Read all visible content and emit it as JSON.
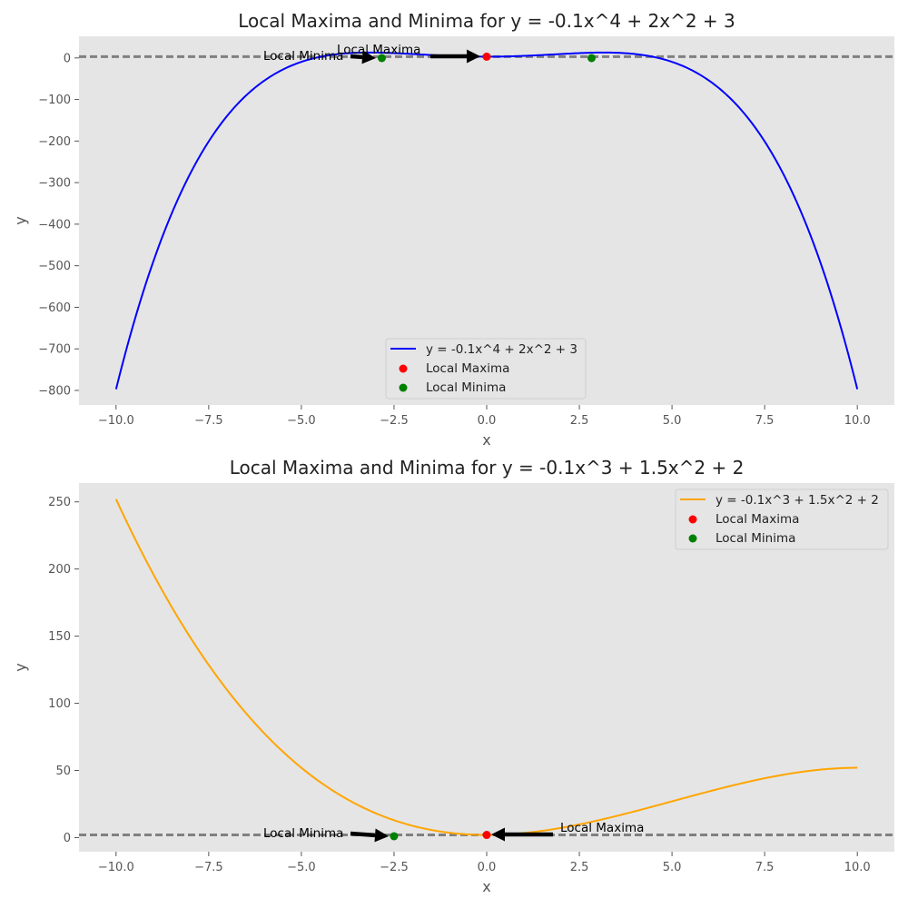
{
  "chart_data": [
    {
      "type": "line",
      "title": "Local Maxima and Minima for y = -0.1x^4 + 2x^2 + 3",
      "xlabel": "x",
      "ylabel": "y",
      "xlim": [
        -11,
        11
      ],
      "ylim": [
        -835,
        52
      ],
      "xticks": [
        -10,
        -7.5,
        -5,
        -2.5,
        0,
        2.5,
        5,
        7.5,
        10
      ],
      "xtick_labels": [
        "−10.0",
        "−7.5",
        "−5.0",
        "−2.5",
        "0.0",
        "2.5",
        "5.0",
        "7.5",
        "10.0"
      ],
      "yticks": [
        0,
        -100,
        -200,
        -300,
        -400,
        -500,
        -600,
        -700,
        -800
      ],
      "ytick_labels": [
        "0",
        "−100",
        "−200",
        "−300",
        "−400",
        "−500",
        "−600",
        "−700",
        "−800"
      ],
      "grid": false,
      "background": "#e5e5e5",
      "legend_placement": "lower-center",
      "hline": {
        "y": 3,
        "color": "#808080",
        "style": "dashed"
      },
      "series": [
        {
          "name": "y = -0.1x^4 + 2x^2 + 3",
          "color": "#0000ff",
          "function": {
            "x0": -10,
            "x1": 10,
            "coefficients": [
              3,
              0,
              2,
              0,
              -0.1
            ]
          }
        }
      ],
      "points": [
        {
          "name": "Local Maxima",
          "color": "#ff0000",
          "x": [
            0
          ],
          "y": [
            3
          ]
        },
        {
          "name": "Local Minima",
          "color": "#008000",
          "x": [
            -2.83,
            2.83
          ],
          "y": [
            -0.3,
            -0.3
          ]
        }
      ],
      "annotations": [
        {
          "text": "Local Minima",
          "xy": [
            -2.83,
            -0.3
          ],
          "xytext": [
            -6,
            -1.5
          ],
          "arrow": true
        },
        {
          "text": "Local Maxima",
          "xy": [
            0,
            3
          ],
          "xytext": [
            -4,
            14
          ],
          "arrow": true
        }
      ]
    },
    {
      "type": "line",
      "title": "Local Maxima and Minima for y = -0.1x^3 + 1.5x^2 + 2",
      "xlabel": "x",
      "ylabel": "y",
      "xlim": [
        -11,
        11
      ],
      "ylim": [
        -10.5,
        264
      ],
      "xticks": [
        -10,
        -7.5,
        -5,
        -2.5,
        0,
        2.5,
        5,
        7.5,
        10
      ],
      "xtick_labels": [
        "−10.0",
        "−7.5",
        "−5.0",
        "−2.5",
        "0.0",
        "2.5",
        "5.0",
        "7.5",
        "10.0"
      ],
      "yticks": [
        0,
        50,
        100,
        150,
        200,
        250
      ],
      "ytick_labels": [
        "0",
        "50",
        "100",
        "150",
        "200",
        "250"
      ],
      "grid": false,
      "background": "#e5e5e5",
      "legend_placement": "upper-right",
      "hline": {
        "y": 2,
        "color": "#808080",
        "style": "dashed"
      },
      "series": [
        {
          "name": "y = -0.1x^3 + 1.5x^2 + 2",
          "color": "#ffa500",
          "function": {
            "x0": -10,
            "x1": 10,
            "coefficients": [
              2,
              0,
              1.5,
              -0.1
            ]
          }
        }
      ],
      "points": [
        {
          "name": "Local Maxima",
          "color": "#ff0000",
          "x": [
            0
          ],
          "y": [
            2
          ]
        },
        {
          "name": "Local Minima",
          "color": "#008000",
          "x": [
            -2.5
          ],
          "y": [
            1
          ]
        }
      ],
      "annotations": [
        {
          "text": "Local Minima",
          "xy": [
            -2.5,
            1
          ],
          "xytext": [
            -6,
            2.5
          ],
          "arrow": true
        },
        {
          "text": "Local Maxima",
          "xy": [
            0,
            2
          ],
          "xytext": [
            2,
            5
          ],
          "arrow": true
        }
      ]
    }
  ]
}
